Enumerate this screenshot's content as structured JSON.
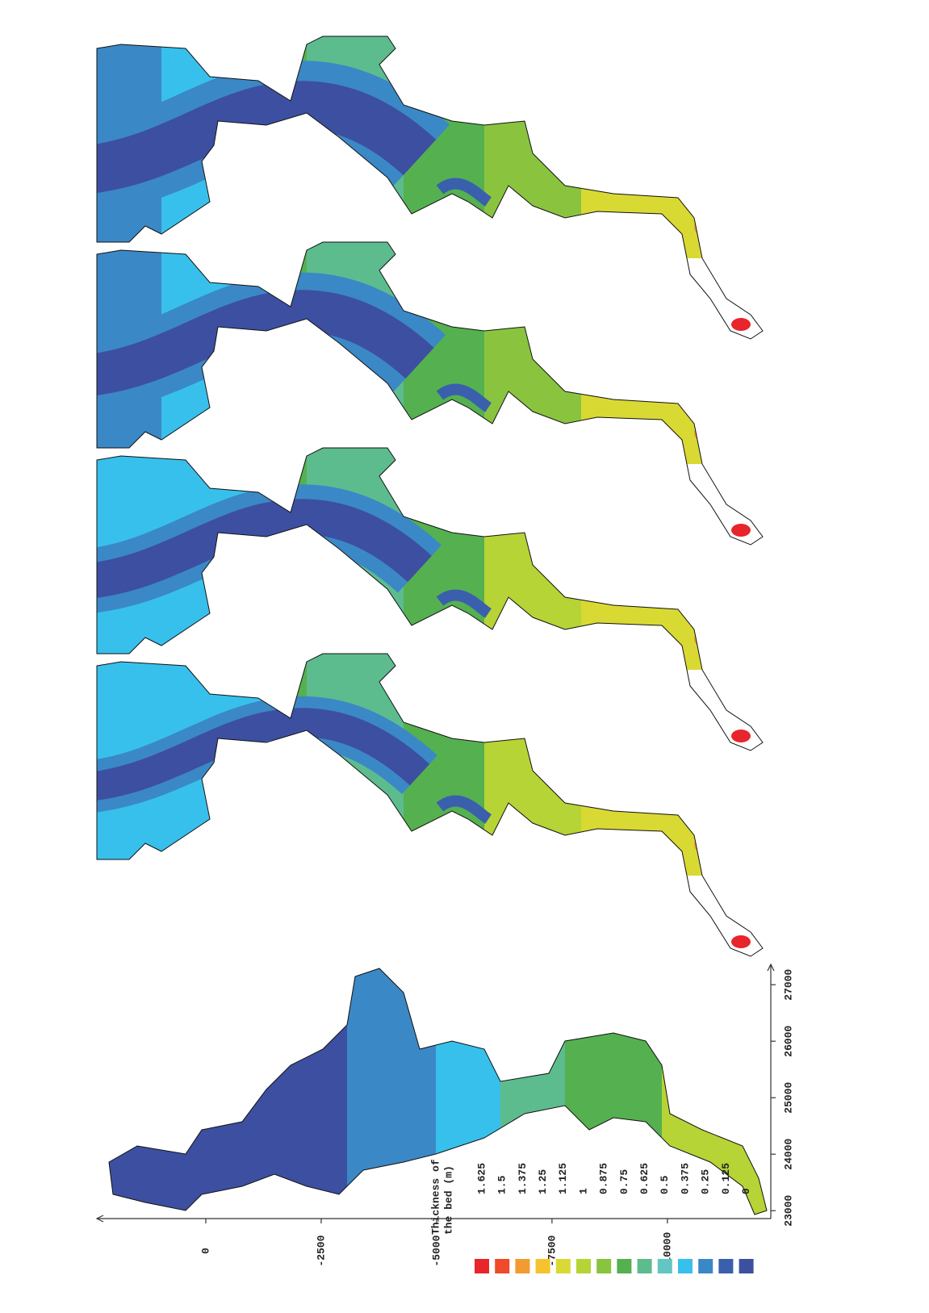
{
  "chart_data": {
    "type": "contour",
    "xlim": [
      22860,
      27360
    ],
    "xticks": [
      23000,
      24000,
      25000,
      26000,
      27000
    ],
    "ylim": [
      2360,
      -12240
    ],
    "yticks": [
      0,
      -2500,
      -5000,
      -7500,
      -10000
    ],
    "legend": {
      "title_lines": [
        "Thickness of",
        "the bed (m)"
      ],
      "levels": [
        1.625,
        1.5,
        1.375,
        1.25,
        1.125,
        1,
        0.875,
        0.75,
        0.625,
        0.5,
        0.375,
        0.25,
        0.125,
        0
      ],
      "colors": [
        "#e8252a",
        "#ee4a2b",
        "#f29b33",
        "#f4c32e",
        "#d9d934",
        "#b6d435",
        "#8ac43f",
        "#55b050",
        "#5dbc8e",
        "#62c6c2",
        "#38c0ec",
        "#3b88c6",
        "#3a5fad",
        "#3d4fa0"
      ]
    }
  }
}
